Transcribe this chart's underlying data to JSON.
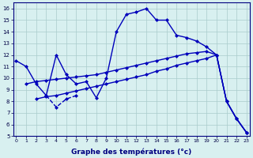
{
  "bg_color": "#d8f0f0",
  "grid_color": "#aacccc",
  "line_color": "#0000bb",
  "xlabel": "Graphe des températures (°c)",
  "xlim": [
    -0.3,
    23.3
  ],
  "ylim": [
    5,
    16.5
  ],
  "line1_x": [
    0,
    1,
    2,
    3,
    4,
    5,
    6,
    7,
    8,
    9,
    10,
    11,
    12,
    13,
    14,
    15,
    16,
    17,
    18,
    19,
    20,
    21,
    22,
    23
  ],
  "line1_y": [
    11.5,
    11.0,
    9.5,
    8.5,
    12.0,
    10.3,
    9.5,
    9.7,
    8.3,
    10.0,
    14.0,
    15.5,
    15.7,
    16.0,
    15.0,
    15.0,
    13.7,
    13.5,
    13.2,
    12.7,
    12.0,
    8.0,
    6.5,
    5.3
  ],
  "line2_x": [
    1,
    2,
    3,
    4,
    5,
    6,
    7,
    8,
    9,
    10,
    11,
    12,
    13,
    14,
    15,
    16,
    17,
    18,
    19,
    20,
    21,
    22,
    23
  ],
  "line2_y": [
    9.5,
    9.7,
    9.8,
    9.9,
    10.0,
    10.1,
    10.2,
    10.3,
    10.5,
    10.7,
    10.9,
    11.1,
    11.3,
    11.5,
    11.7,
    11.9,
    12.1,
    12.2,
    12.3,
    12.0,
    8.0,
    6.5,
    5.3
  ],
  "line3_x": [
    2,
    3,
    4,
    5,
    6,
    7,
    8,
    9,
    10,
    11,
    12,
    13,
    14,
    15,
    16,
    17,
    18,
    19,
    20,
    21,
    22,
    23
  ],
  "line3_y": [
    8.2,
    8.4,
    8.5,
    8.7,
    8.9,
    9.1,
    9.3,
    9.5,
    9.7,
    9.9,
    10.1,
    10.3,
    10.6,
    10.8,
    11.1,
    11.3,
    11.5,
    11.7,
    12.0,
    8.0,
    6.5,
    5.3
  ],
  "line4_x": [
    3,
    4,
    5,
    6
  ],
  "line4_y": [
    8.5,
    7.5,
    8.2,
    8.5
  ]
}
